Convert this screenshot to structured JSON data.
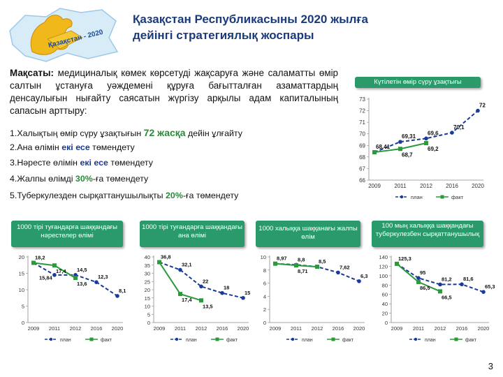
{
  "title_line1": "Қазақстан Республикасыны 2020 жылға",
  "title_line2": "дейінгі стратегиялық жоспары",
  "logo_text": "Қазақстан - 2020",
  "goal": {
    "label": "Мақсаты:",
    "text": " медициналық көмек көрсетуді жақсаруға және саламатты өмір салтын ұстануға уәждемені құруға бағытталған азаматтардың денсаулығын нығайту саясатын жүргізу арқылы адам капиталының сапасын арттыру:"
  },
  "tasks": [
    {
      "pre": "1.Халықтың өмір сүру ұзақтығын ",
      "hl": "72 жасқа",
      "post": " дейін ұлғайту"
    },
    {
      "pre": "2.Ана өлімін ",
      "hl": "екі есе",
      "post": " төмендету"
    },
    {
      "pre": "3.Нәресте өлімін ",
      "hl": "екі есе",
      "post": " төмендету"
    },
    {
      "pre": "4.Жалпы өлімді ",
      "hl": "30%",
      "post": "-ға төмендету"
    },
    {
      "pre": "5.Туберкулезден сырқаттанушылықты ",
      "hl": "20%",
      "post": "-ға төмендету"
    }
  ],
  "page_number": "3",
  "colors": {
    "plan": "#1a3a9a",
    "fact": "#2a9a3a",
    "header_bg": "#2a9a6a",
    "title": "#1a3a7a"
  },
  "chart_data": [
    {
      "type": "line",
      "title": "Күтілетін өмір сүру ұзақтығы",
      "x": [
        "2009",
        "2011",
        "2012",
        "2016",
        "2020"
      ],
      "ylim": [
        66,
        73
      ],
      "yticks": [
        "73",
        "72",
        "71",
        "70",
        "69",
        "68",
        "67",
        "66"
      ],
      "series": [
        {
          "name": "план",
          "values": [
            68.41,
            69.31,
            69.6,
            70.1,
            72
          ],
          "labels": [
            "68,41",
            "69,31",
            "69,6",
            "70,1",
            "72"
          ]
        },
        {
          "name": "факт",
          "values": [
            68.41,
            68.7,
            69.2,
            null,
            null
          ],
          "labels": [
            "",
            "68,7",
            "69,2",
            "",
            ""
          ]
        }
      ]
    },
    {
      "type": "line",
      "title": "1000 тірі туғандарға шаққандағы нәрестелер өлімі",
      "x": [
        "2009",
        "2011",
        "2012",
        "2016",
        "2020"
      ],
      "ylim": [
        0,
        20
      ],
      "yticks": [
        "20",
        "15",
        "10",
        "5",
        "0"
      ],
      "series": [
        {
          "name": "план",
          "values": [
            18.2,
            14.5,
            14.5,
            12.3,
            8.1
          ],
          "labels": [
            "18,2",
            "",
            "14,5",
            "12,3",
            "8,1"
          ]
        },
        {
          "name": "факт",
          "values": [
            18.2,
            17.4,
            13.6,
            null,
            null
          ],
          "labels": [
            "",
            "17,4",
            "13,6",
            "",
            ""
          ]
        }
      ],
      "extra_labels": [
        "15,84"
      ]
    },
    {
      "type": "line",
      "title": "1000 тірі туғандарға шаққандағы ана өлімі",
      "x": [
        "2009",
        "2011",
        "2012",
        "2016",
        "2020"
      ],
      "ylim": [
        0,
        40
      ],
      "yticks": [
        "40",
        "35",
        "30",
        "25",
        "20",
        "15",
        "10",
        "5",
        "0"
      ],
      "series": [
        {
          "name": "план",
          "values": [
            36.8,
            32.1,
            22,
            18,
            15
          ],
          "labels": [
            "36,8",
            "32,1",
            "22",
            "18",
            "15"
          ]
        },
        {
          "name": "факт",
          "values": [
            36.8,
            17.4,
            13.5,
            null,
            null
          ],
          "labels": [
            "",
            "17,4",
            "13,5",
            "",
            ""
          ]
        }
      ]
    },
    {
      "type": "line",
      "title": "1000 халыққа шаққанағы жалпы өлім",
      "x": [
        "2009",
        "2011",
        "2012",
        "2016",
        "2020"
      ],
      "ylim": [
        0,
        10
      ],
      "yticks": [
        "10",
        "8",
        "6",
        "4",
        "2",
        "0"
      ],
      "series": [
        {
          "name": "план",
          "values": [
            8.97,
            8.8,
            8.5,
            7.62,
            6.3
          ],
          "labels": [
            "8,97",
            "8,8",
            "8,5",
            "7,62",
            "6,3"
          ]
        },
        {
          "name": "факт",
          "values": [
            8.97,
            8.71,
            8.5,
            null,
            null
          ],
          "labels": [
            "",
            "8,71",
            "",
            "",
            ""
          ]
        }
      ]
    },
    {
      "type": "line",
      "title": "100 мың халыққа шаққандағы туберкулезбен сырқаттанушылық",
      "x": [
        "2009",
        "2011",
        "2012",
        "2016",
        "2020"
      ],
      "ylim": [
        0,
        140
      ],
      "yticks": [
        "140",
        "120",
        "100",
        "80",
        "60",
        "40",
        "20",
        "0"
      ],
      "series": [
        {
          "name": "план",
          "values": [
            125.3,
            95,
            81.2,
            81.6,
            65.3
          ],
          "labels": [
            "125,3",
            "95",
            "81,2",
            "81,6",
            "65,3"
          ]
        },
        {
          "name": "факт",
          "values": [
            125.3,
            86.5,
            66.5,
            null,
            null
          ],
          "labels": [
            "",
            "86,5",
            "66,5",
            "",
            ""
          ]
        }
      ]
    }
  ]
}
